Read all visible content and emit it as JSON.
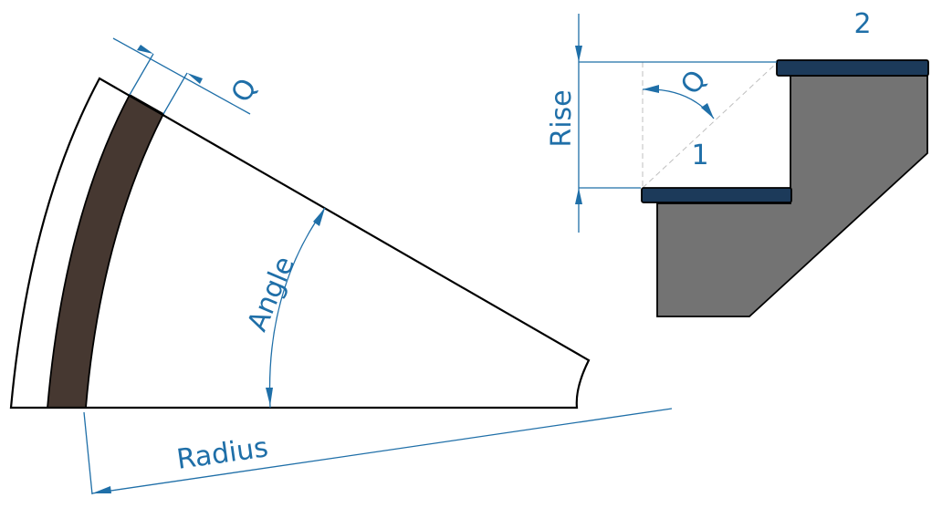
{
  "labels": {
    "thickness_left": "Q",
    "angle": "Angle",
    "radius": "Radius",
    "rise": "Rise",
    "thickness_right": "Q",
    "step_1": "1",
    "step_2": "2"
  },
  "colors": {
    "dimension": "#1f6fa8",
    "outline": "#000000",
    "tread_band": "#463831",
    "stair_body": "#737373",
    "tread": "#1c3a5a"
  }
}
